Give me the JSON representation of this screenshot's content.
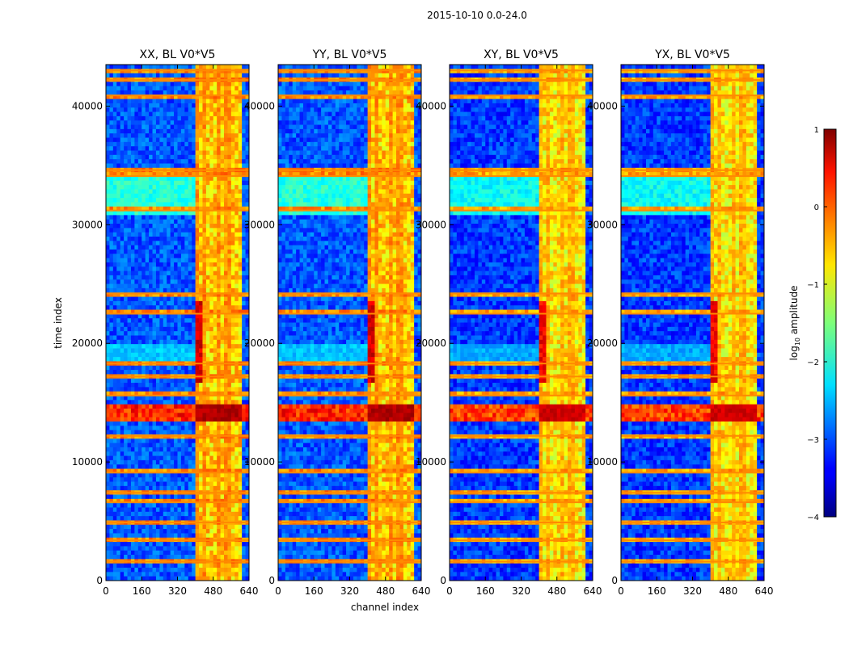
{
  "chart_data": {
    "type": "heatmap",
    "title": "2015-10-10 0.0-24.0",
    "xlabel": "channel index",
    "ylabel": "time index",
    "xlim": [
      0,
      640
    ],
    "ylim": [
      0,
      43500
    ],
    "xticks": [
      0,
      160,
      320,
      480,
      640
    ],
    "yticks": [
      0,
      10000,
      20000,
      30000,
      40000
    ],
    "panels": [
      {
        "title": "XX, BL V0*V5"
      },
      {
        "title": "YY, BL V0*V5"
      },
      {
        "title": "XY, BL V0*V5"
      },
      {
        "title": "YX, BL V0*V5"
      }
    ],
    "colorbar": {
      "label": "log10 amplitude",
      "label_main": "log",
      "label_sub": "10",
      "label_rest": " amplitude",
      "range": [
        -4,
        1
      ],
      "ticks": [
        1,
        0,
        -1,
        -2,
        -3,
        -4
      ],
      "tick_labels": [
        "1",
        "0",
        "−1",
        "−2",
        "−3",
        "−4"
      ],
      "colormap": "jet"
    },
    "features": {
      "rfi_channel_band": [
        405,
        600
      ],
      "bright_channel_columns": [
        405,
        440,
        450,
        480,
        500,
        540,
        555,
        575,
        590
      ],
      "strong_time_band": [
        13500,
        15000
      ],
      "elevated_time_bands": [
        [
          30800,
          34800
        ]
      ],
      "strong_channel_segments": [
        [
          16500,
          23500
        ]
      ],
      "horizontal_rfi_lines": [
        1600,
        3400,
        4900,
        6600,
        7400,
        9100,
        12200,
        15600,
        17200,
        18300,
        22500,
        24200,
        31200,
        34100,
        34600,
        40900,
        42200,
        43000
      ]
    }
  }
}
